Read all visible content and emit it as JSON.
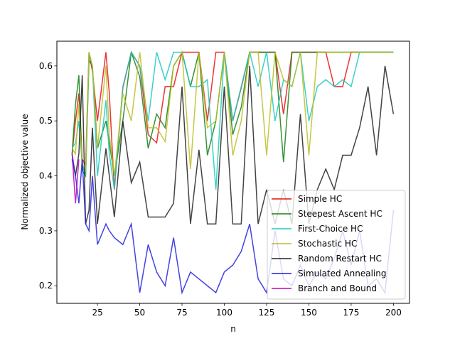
{
  "chart_data": {
    "type": "line",
    "title": "",
    "xlabel": "n",
    "ylabel": "Normalized objective value",
    "xlim": [
      1,
      209.5
    ],
    "ylim": [
      0.168,
      0.645
    ],
    "xticks": [
      25,
      50,
      75,
      100,
      125,
      150,
      175,
      200
    ],
    "yticks": [
      0.2,
      0.3,
      0.4,
      0.5,
      0.6
    ],
    "ytick_labels": [
      "0.2",
      "0.3",
      "0.4",
      "0.5",
      "0.6"
    ],
    "grid": false,
    "legend_position": "lower-right",
    "x": [
      10,
      12,
      14,
      16,
      18,
      20,
      22,
      25,
      30,
      32,
      35,
      40,
      45,
      50,
      55,
      60,
      65,
      70,
      75,
      80,
      85,
      90,
      95,
      100,
      105,
      110,
      115,
      120,
      125,
      130,
      135,
      140,
      145,
      150,
      155,
      160,
      165,
      170,
      175,
      180,
      185,
      190,
      195,
      200
    ],
    "series": [
      {
        "name": "Simple HC",
        "color": "#e8110f",
        "values": [
          0.44,
          0.5,
          0.55,
          0.43,
          0.42,
          0.625,
          0.59,
          0.5,
          0.625,
          0.55,
          0.375,
          0.56,
          0.625,
          0.6,
          0.475,
          0.46,
          0.5625,
          0.5625,
          0.625,
          0.625,
          0.625,
          0.5,
          0.625,
          0.625,
          0.5,
          0.56,
          0.625,
          0.625,
          0.625,
          0.625,
          0.5125,
          0.625,
          0.625,
          0.625,
          0.625,
          0.625,
          0.5625,
          0.5625,
          0.625,
          0.625,
          0.625,
          0.625,
          0.625,
          0.625
        ]
      },
      {
        "name": "Steepest Ascent HC",
        "color": "#138013",
        "values": [
          0.44,
          0.53,
          0.583,
          0.41,
          0.4,
          0.61,
          0.6,
          0.45,
          0.5,
          0.46,
          0.4,
          0.5,
          0.625,
          0.58,
          0.45,
          0.5125,
          0.4875,
          0.6,
          0.625,
          0.5625,
          0.625,
          0.4375,
          0.5,
          0.625,
          0.475,
          0.525,
          0.625,
          0.625,
          0.625,
          0.625,
          0.425,
          0.625,
          0.625,
          0.625,
          0.625,
          0.625,
          0.625,
          0.625,
          0.625,
          0.625,
          0.625,
          0.625,
          0.625,
          0.625
        ]
      },
      {
        "name": "First-Choice HC",
        "color": "#1ac9c0",
        "values": [
          0.45,
          0.46,
          0.5,
          0.42,
          0.4,
          0.625,
          0.6,
          0.4,
          0.5375,
          0.44,
          0.375,
          0.5625,
          0.625,
          0.6,
          0.5,
          0.625,
          0.575,
          0.625,
          0.625,
          0.5625,
          0.5625,
          0.575,
          0.375,
          0.625,
          0.5,
          0.5625,
          0.625,
          0.5625,
          0.625,
          0.5,
          0.575,
          0.5625,
          0.625,
          0.5,
          0.5625,
          0.575,
          0.5625,
          0.575,
          0.5625,
          0.625,
          0.625,
          0.625,
          0.625,
          0.625
        ]
      },
      {
        "name": "Stochastic HC",
        "color": "#bcbd22",
        "values": [
          0.45,
          0.44,
          0.53,
          0.42,
          0.41,
          0.625,
          0.6,
          0.45,
          0.6,
          0.475,
          0.4,
          0.55,
          0.5,
          0.625,
          0.4875,
          0.4875,
          0.4625,
          0.6,
          0.625,
          0.4125,
          0.625,
          0.4875,
          0.5,
          0.625,
          0.4375,
          0.5,
          0.625,
          0.625,
          0.4375,
          0.625,
          0.575,
          0.5625,
          0.625,
          0.4375,
          0.625,
          0.625,
          0.625,
          0.625,
          0.625,
          0.625,
          0.625,
          0.625,
          0.625,
          0.625
        ]
      },
      {
        "name": "Random Restart HC",
        "color": "#222222",
        "values": [
          0.43,
          0.4,
          0.44,
          0.583,
          0.3125,
          0.3375,
          0.4875,
          0.3125,
          0.45,
          0.4,
          0.325,
          0.5,
          0.3875,
          0.425,
          0.325,
          0.325,
          0.325,
          0.35,
          0.5625,
          0.3125,
          0.4475,
          0.3125,
          0.3125,
          0.5625,
          0.3125,
          0.3125,
          0.6,
          0.3125,
          0.375,
          0.3125,
          0.375,
          0.3125,
          0.5125,
          0.3125,
          0.375,
          0.4125,
          0.375,
          0.4375,
          0.4375,
          0.4875,
          0.5625,
          0.4375,
          0.6,
          0.5125
        ]
      },
      {
        "name": "Simulated Annealing",
        "color": "#2222dd",
        "values": [
          0.44,
          0.4,
          0.35,
          0.43,
          0.3125,
          0.3,
          0.4,
          0.275,
          0.3125,
          0.3,
          0.2875,
          0.275,
          0.3125,
          0.1875,
          0.275,
          0.225,
          0.2,
          0.2875,
          0.1875,
          0.225,
          0.2125,
          0.2,
          0.1875,
          0.225,
          0.2375,
          0.2625,
          0.3125,
          0.2125,
          0.1875,
          0.3,
          0.2125,
          0.2,
          0.2375,
          0.2,
          0.225,
          0.2125,
          0.25,
          0.3,
          0.2375,
          0.3,
          0.2,
          0.2125,
          0.1875,
          0.3375
        ]
      },
      {
        "name": "Branch and Bound",
        "color": "#bf00bf",
        "x": [
          10,
          12,
          14
        ],
        "values": [
          0.44,
          0.35,
          0.43
        ]
      }
    ]
  }
}
